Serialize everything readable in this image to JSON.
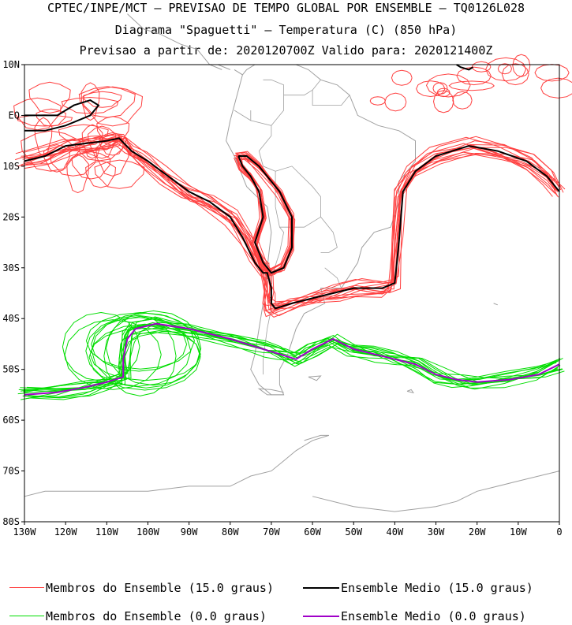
{
  "titles": {
    "line1": "CPTEC/INPE/MCT – PREVISAO DE TEMPO GLOBAL POR ENSEMBLE – TQ0126L028",
    "line2": "Diagrama \"Spaguetti\" – Temperatura (C) (850 hPa)",
    "line3": "Previsao a partir de: 2020120700Z  Valido para: 2020121400Z"
  },
  "map": {
    "region": "South America and adjacent South Pacific / South Atlantic",
    "lon_range": [
      -130,
      0
    ],
    "lat_range": [
      -80,
      10
    ],
    "lat_labels": [
      "10N",
      "EQ",
      "10S",
      "20S",
      "30S",
      "40S",
      "50S",
      "60S",
      "70S",
      "80S"
    ],
    "lon_labels": [
      "130W",
      "120W",
      "110W",
      "100W",
      "90W",
      "80W",
      "70W",
      "60W",
      "50W",
      "40W",
      "30W",
      "20W",
      "10W",
      "0"
    ]
  },
  "colors": {
    "members_15": "#ff4040",
    "mean_15": "#000000",
    "members_0": "#00dd00",
    "mean_0": "#a000c8",
    "coast": "#a0a0a0"
  },
  "legend": {
    "members_15_label": "Membros do Ensemble (15.0 graus)",
    "mean_15_label": "Ensemble Medio (15.0 graus)",
    "members_0_label": "Membros do Ensemble (0.0 graus)",
    "mean_0_label": "Ensemble Medio (0.0 graus)"
  },
  "contours": {
    "mean_15_main": [
      [
        -130,
        -9
      ],
      [
        -125,
        -8
      ],
      [
        -120,
        -6
      ],
      [
        -115,
        -5.5
      ],
      [
        -110,
        -5
      ],
      [
        -107,
        -4.5
      ],
      [
        -104,
        -7
      ],
      [
        -100,
        -9
      ],
      [
        -95,
        -12
      ],
      [
        -90,
        -15
      ],
      [
        -85,
        -17
      ],
      [
        -80,
        -20
      ],
      [
        -77,
        -24
      ],
      [
        -74,
        -29
      ],
      [
        -72,
        -31
      ],
      [
        -71,
        -31
      ],
      [
        -70,
        -34
      ],
      [
        -70,
        -37
      ],
      [
        -69,
        -38
      ],
      [
        -65,
        -37
      ],
      [
        -60,
        -36
      ],
      [
        -55,
        -35
      ],
      [
        -50,
        -34
      ],
      [
        -43,
        -34
      ],
      [
        -40,
        -33
      ],
      [
        -39,
        -25
      ],
      [
        -38,
        -15
      ],
      [
        -35,
        -11
      ],
      [
        -30,
        -8
      ],
      [
        -22,
        -6
      ],
      [
        -15,
        -7
      ],
      [
        -8,
        -9
      ],
      [
        -3,
        -12
      ],
      [
        0,
        -15
      ]
    ],
    "mean_15_andes": [
      [
        -78,
        -8
      ],
      [
        -77,
        -10
      ],
      [
        -75,
        -12
      ],
      [
        -73,
        -15
      ],
      [
        -72,
        -20
      ],
      [
        -74,
        -25
      ],
      [
        -72,
        -29
      ],
      [
        -70,
        -31
      ],
      [
        -67,
        -30
      ],
      [
        -65,
        -26
      ],
      [
        -65,
        -20
      ],
      [
        -68,
        -15
      ],
      [
        -73,
        -10
      ],
      [
        -76,
        -8
      ],
      [
        -78,
        -8
      ]
    ],
    "mean_15_pacific": [
      [
        -130,
        -3
      ],
      [
        -125,
        -3
      ],
      [
        -120,
        -2
      ],
      [
        -114,
        0
      ],
      [
        -112,
        2
      ],
      [
        -114,
        3
      ],
      [
        -118,
        2
      ],
      [
        -122,
        0
      ],
      [
        -126,
        0
      ],
      [
        -130,
        0
      ]
    ],
    "mean_15_atlantic_top": [
      [
        -25,
        10
      ],
      [
        -24,
        9.5
      ],
      [
        -22,
        9
      ],
      [
        -21,
        9.5
      ]
    ],
    "mean_0": [
      [
        -130,
        -55
      ],
      [
        -122,
        -54.5
      ],
      [
        -115,
        -53.5
      ],
      [
        -110,
        -52.5
      ],
      [
        -106,
        -51.5
      ],
      [
        -106,
        -48
      ],
      [
        -105,
        -44
      ],
      [
        -103,
        -42
      ],
      [
        -98,
        -41
      ],
      [
        -90,
        -42
      ],
      [
        -80,
        -44
      ],
      [
        -72,
        -46
      ],
      [
        -68,
        -47
      ],
      [
        -64,
        -48
      ],
      [
        -60,
        -46
      ],
      [
        -55,
        -44
      ],
      [
        -50,
        -46
      ],
      [
        -45,
        -47
      ],
      [
        -40,
        -48
      ],
      [
        -35,
        -49
      ],
      [
        -30,
        -51
      ],
      [
        -25,
        -52
      ],
      [
        -20,
        -52.5
      ],
      [
        -12,
        -52
      ],
      [
        -5,
        -51
      ],
      [
        0,
        -49
      ]
    ]
  }
}
